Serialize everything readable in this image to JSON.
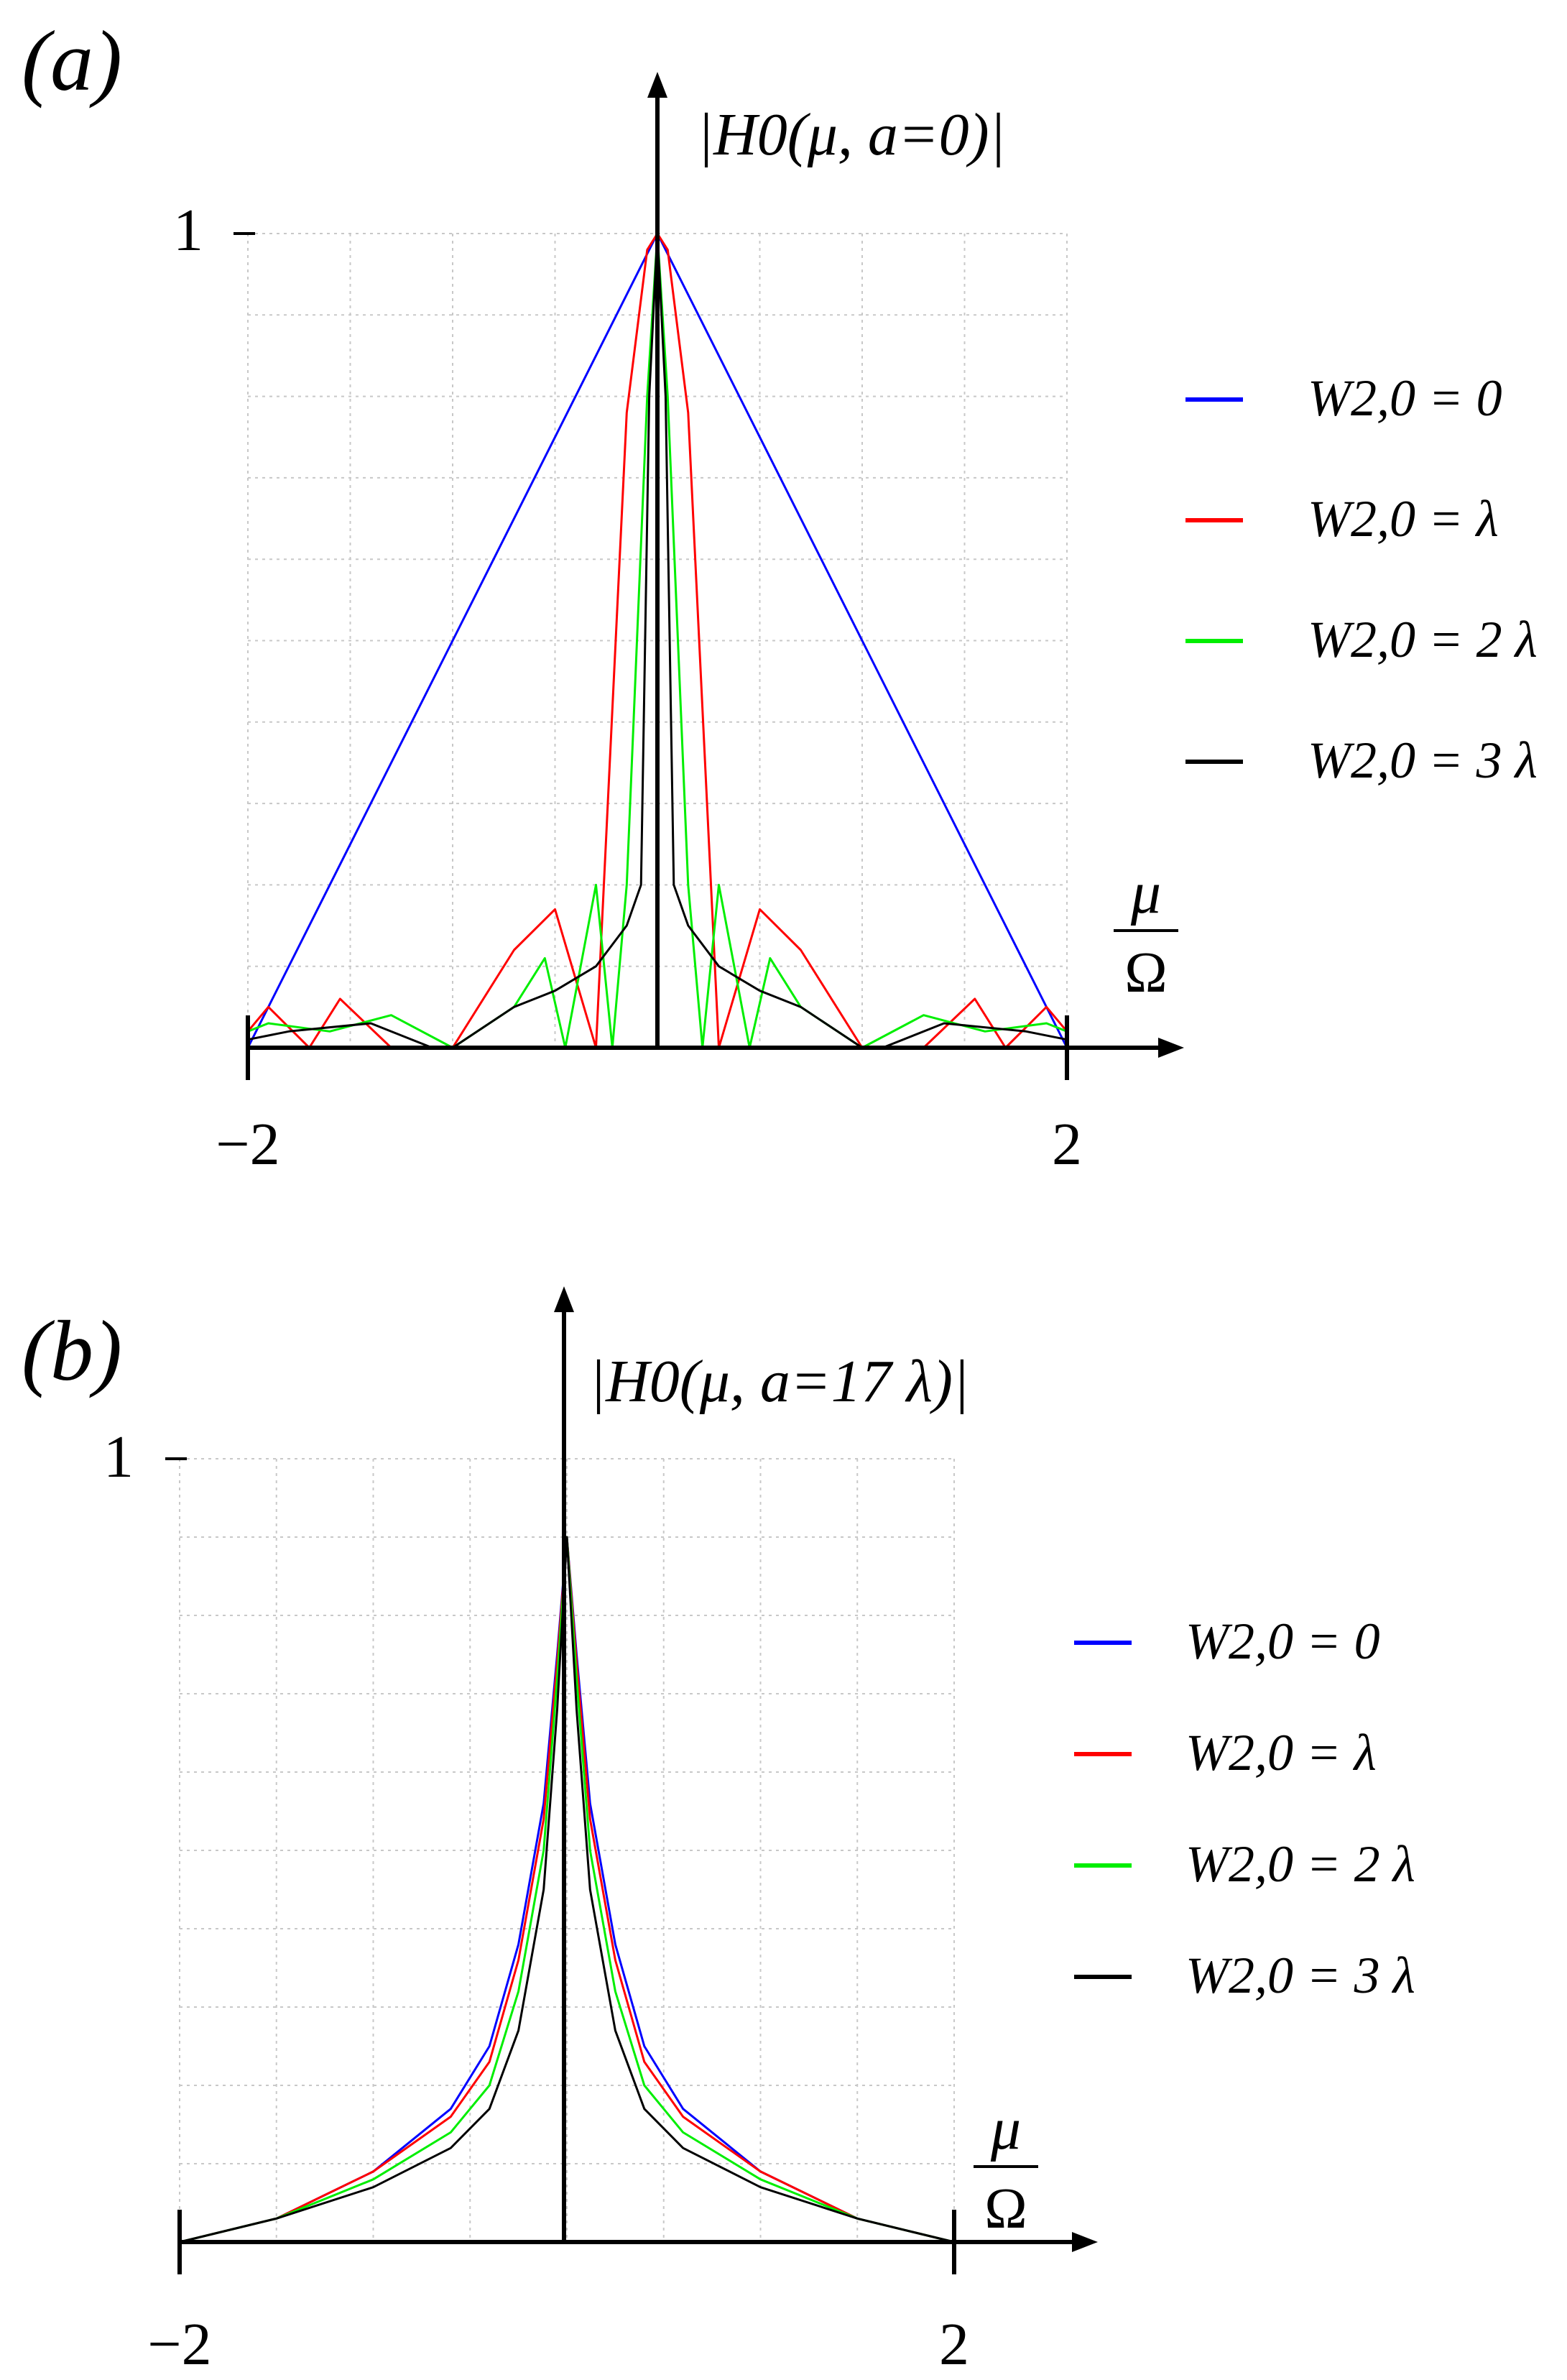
{
  "chart_data": [
    {
      "type": "line",
      "panel_label": "a",
      "ylabel": "|H0(μ, a=0)|",
      "xlabel": "μ / Ω",
      "x_ticks": [
        "−2",
        "2"
      ],
      "y_ticks": [
        "1"
      ],
      "xlim": [
        -2,
        2
      ],
      "ylim": [
        0,
        1
      ],
      "grid": true,
      "legend_position": "right",
      "series": [
        {
          "name": "W2,0 = 0",
          "color": "#0000ff",
          "x": [
            -2,
            -1.5,
            -1,
            -0.5,
            0,
            0.5,
            1,
            1.5,
            2
          ],
          "y": [
            0,
            0.25,
            0.5,
            0.75,
            1,
            0.75,
            0.5,
            0.25,
            0
          ]
        },
        {
          "name": "W2,0 = λ",
          "color": "#ff0000",
          "x": [
            -2,
            -1.9,
            -1.7,
            -1.55,
            -1.3,
            -1.0,
            -0.7,
            -0.5,
            -0.3,
            -0.15,
            -0.05,
            0,
            0.05,
            0.15,
            0.3,
            0.5,
            0.7,
            1.0,
            1.3,
            1.55,
            1.7,
            1.9,
            2
          ],
          "y": [
            0.02,
            0.05,
            0.0,
            0.06,
            0.0,
            0.0,
            0.12,
            0.17,
            0.0,
            0.78,
            0.98,
            1,
            0.98,
            0.78,
            0.0,
            0.17,
            0.12,
            0.0,
            0.0,
            0.06,
            0.0,
            0.05,
            0.02
          ]
        },
        {
          "name": "W2,0 = 2 λ",
          "color": "#00ee00",
          "x": [
            -2,
            -1.9,
            -1.6,
            -1.3,
            -1.0,
            -0.7,
            -0.55,
            -0.45,
            -0.3,
            -0.22,
            -0.15,
            -0.05,
            0,
            0.05,
            0.15,
            0.22,
            0.3,
            0.45,
            0.55,
            0.7,
            1.0,
            1.3,
            1.6,
            1.9,
            2
          ],
          "y": [
            0.02,
            0.03,
            0.02,
            0.04,
            0.0,
            0.05,
            0.11,
            0.0,
            0.2,
            0.0,
            0.2,
            0.8,
            1,
            0.8,
            0.2,
            0.0,
            0.2,
            0.0,
            0.11,
            0.05,
            0.0,
            0.04,
            0.02,
            0.03,
            0.02
          ]
        },
        {
          "name": "W2,0 = 3 λ",
          "color": "#000000",
          "x": [
            -2,
            -1.8,
            -1.4,
            -1.1,
            -1.0,
            -0.7,
            -0.5,
            -0.3,
            -0.15,
            -0.08,
            -0.04,
            0,
            0.04,
            0.08,
            0.15,
            0.3,
            0.5,
            0.7,
            1.0,
            1.1,
            1.4,
            1.8,
            2
          ],
          "y": [
            0.01,
            0.02,
            0.03,
            0.0,
            0.0,
            0.05,
            0.07,
            0.1,
            0.15,
            0.2,
            0.8,
            1,
            0.8,
            0.2,
            0.15,
            0.1,
            0.07,
            0.05,
            0.0,
            0.0,
            0.03,
            0.02,
            0.01
          ]
        }
      ]
    },
    {
      "type": "line",
      "panel_label": "b",
      "ylabel": "|H0(μ, a=17 λ)|",
      "xlabel": "μ / Ω",
      "x_ticks": [
        "−2",
        "2"
      ],
      "y_ticks": [
        "1"
      ],
      "xlim": [
        -2,
        2
      ],
      "ylim": [
        0,
        1
      ],
      "grid": true,
      "legend_position": "right",
      "series": [
        {
          "name": "W2,0 = 0",
          "color": "#0000ff",
          "x": [
            -2,
            -1.5,
            -1.0,
            -0.6,
            -0.4,
            -0.25,
            -0.12,
            -0.05,
            0,
            0.05,
            0.12,
            0.25,
            0.4,
            0.6,
            1.0,
            1.5,
            2
          ],
          "y": [
            0.0,
            0.03,
            0.09,
            0.17,
            0.25,
            0.38,
            0.56,
            0.75,
            0.9,
            0.75,
            0.56,
            0.38,
            0.25,
            0.17,
            0.09,
            0.03,
            0.0
          ]
        },
        {
          "name": "W2,0 = λ",
          "color": "#ff0000",
          "x": [
            -2,
            -1.5,
            -1.0,
            -0.6,
            -0.4,
            -0.25,
            -0.12,
            -0.05,
            0,
            0.05,
            0.12,
            0.25,
            0.4,
            0.6,
            1.0,
            1.5,
            2
          ],
          "y": [
            0.0,
            0.03,
            0.09,
            0.16,
            0.23,
            0.36,
            0.54,
            0.74,
            0.9,
            0.74,
            0.54,
            0.36,
            0.23,
            0.16,
            0.09,
            0.03,
            0.0
          ]
        },
        {
          "name": "W2,0 = 2 λ",
          "color": "#00ee00",
          "x": [
            -2,
            -1.5,
            -1.0,
            -0.6,
            -0.4,
            -0.25,
            -0.12,
            -0.05,
            0,
            0.05,
            0.12,
            0.25,
            0.4,
            0.6,
            1.0,
            1.5,
            2
          ],
          "y": [
            0.0,
            0.03,
            0.08,
            0.14,
            0.2,
            0.32,
            0.5,
            0.72,
            0.9,
            0.72,
            0.5,
            0.32,
            0.2,
            0.14,
            0.08,
            0.03,
            0.0
          ]
        },
        {
          "name": "W2,0 = 3 λ",
          "color": "#000000",
          "x": [
            -2,
            -1.5,
            -1.0,
            -0.6,
            -0.4,
            -0.25,
            -0.12,
            -0.05,
            0,
            0.05,
            0.12,
            0.25,
            0.4,
            0.6,
            1.0,
            1.5,
            2
          ],
          "y": [
            0.0,
            0.03,
            0.07,
            0.12,
            0.17,
            0.27,
            0.45,
            0.68,
            0.9,
            0.68,
            0.45,
            0.27,
            0.17,
            0.12,
            0.07,
            0.03,
            0.0
          ]
        }
      ]
    }
  ]
}
